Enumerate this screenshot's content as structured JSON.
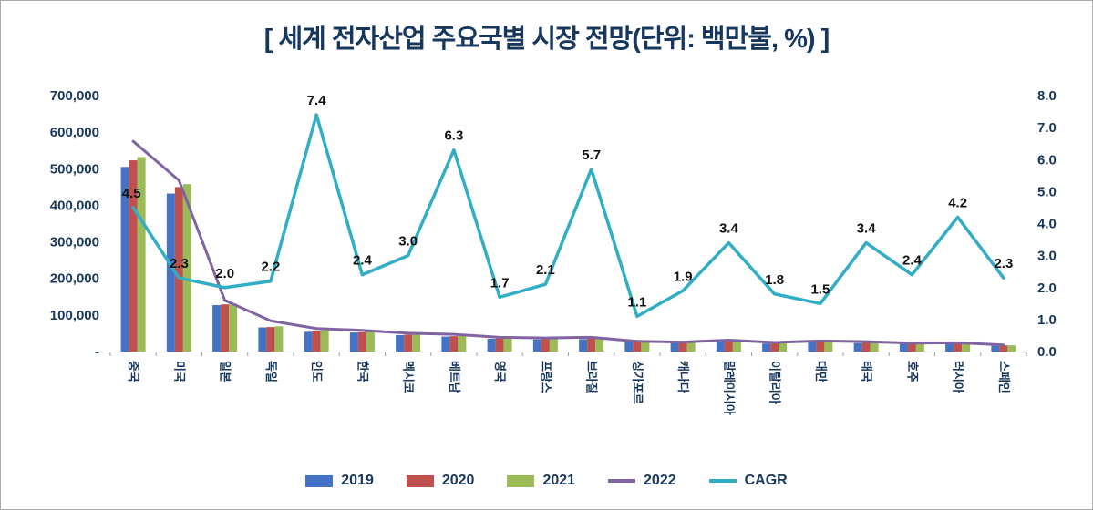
{
  "chart_data": {
    "type": "bar",
    "subtype": "bar-line-combo",
    "title": "[ 세계 전자산업 주요국별 시장 전망(단위: 백만불, %) ]",
    "categories": [
      "중국",
      "미국",
      "일본",
      "독일",
      "인도",
      "한국",
      "멕시코",
      "베트남",
      "영국",
      "프랑스",
      "브라질",
      "싱가포르",
      "캐나다",
      "말레이시아",
      "이탈리아",
      "대만",
      "태국",
      "호주",
      "러시아",
      "스페인"
    ],
    "series": [
      {
        "name": "2019",
        "kind": "bar",
        "axis": "left",
        "color": "#4472c4",
        "values": [
          505000,
          432000,
          127000,
          66000,
          54000,
          52000,
          45000,
          41000,
          35000,
          33000,
          34000,
          26000,
          23000,
          27000,
          22000,
          26000,
          23000,
          20000,
          20000,
          16000
        ]
      },
      {
        "name": "2020",
        "kind": "bar",
        "axis": "left",
        "color": "#c0504d",
        "values": [
          523000,
          450000,
          129000,
          67000,
          56000,
          53000,
          46000,
          42000,
          36000,
          34000,
          35000,
          26000,
          24000,
          28000,
          23000,
          27000,
          24000,
          20000,
          21000,
          17000
        ]
      },
      {
        "name": "2021",
        "kind": "bar",
        "axis": "left",
        "color": "#9bbb59",
        "values": [
          532000,
          458000,
          131000,
          69000,
          58000,
          55000,
          47000,
          44000,
          36000,
          35000,
          37000,
          27000,
          24000,
          29000,
          23000,
          27000,
          25000,
          21000,
          22000,
          17000
        ]
      },
      {
        "name": "2022",
        "kind": "line",
        "axis": "left",
        "color": "#8064a2",
        "values": [
          575000,
          468000,
          140000,
          84000,
          63000,
          58000,
          50000,
          47000,
          39000,
          37000,
          39000,
          28000,
          26000,
          31000,
          25000,
          29000,
          27000,
          23000,
          24000,
          18000
        ]
      },
      {
        "name": "CAGR",
        "kind": "line",
        "axis": "right",
        "color": "#31aec6",
        "data_labels": true,
        "values": [
          4.5,
          2.3,
          2.0,
          2.2,
          7.4,
          2.4,
          3.0,
          6.3,
          1.7,
          2.1,
          5.7,
          1.1,
          1.9,
          3.4,
          1.8,
          1.5,
          3.4,
          2.4,
          4.2,
          2.3
        ]
      }
    ],
    "left_axis": {
      "min": 0,
      "max": 700000,
      "step": 100000,
      "tick_labels": [
        "-",
        "100,000",
        "200,000",
        "300,000",
        "400,000",
        "500,000",
        "600,000",
        "700,000"
      ]
    },
    "right_axis": {
      "min": 0,
      "max": 8,
      "step": 1,
      "tick_labels": [
        "0.0",
        "1.0",
        "2.0",
        "3.0",
        "4.0",
        "5.0",
        "6.0",
        "7.0",
        "8.0"
      ]
    },
    "grid": false,
    "legend_position": "bottom"
  }
}
